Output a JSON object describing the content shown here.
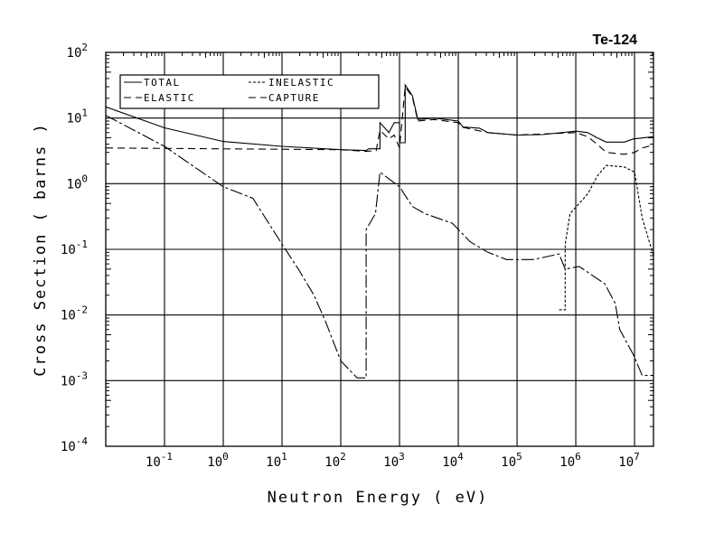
{
  "chart_data": {
    "type": "line",
    "title": "Te-124",
    "xlabel": "Neutron Energy (  eV)",
    "ylabel": "Cross Section ( barns )",
    "xscale": "log",
    "yscale": "log",
    "xlim": [
      0.01,
      21000000
    ],
    "ylim": [
      0.0001,
      100
    ],
    "grid": true,
    "legend_position": "top-left",
    "x_ticks": [
      {
        "base": "10",
        "exp": "-1"
      },
      {
        "base": "10",
        "exp": "0"
      },
      {
        "base": "10",
        "exp": "1"
      },
      {
        "base": "10",
        "exp": "2"
      },
      {
        "base": "10",
        "exp": "3"
      },
      {
        "base": "10",
        "exp": "4"
      },
      {
        "base": "10",
        "exp": "5"
      },
      {
        "base": "10",
        "exp": "6"
      },
      {
        "base": "10",
        "exp": "7"
      }
    ],
    "y_ticks": [
      {
        "base": "10",
        "exp": "2"
      },
      {
        "base": "10",
        "exp": "1"
      },
      {
        "base": "10",
        "exp": "0"
      },
      {
        "base": "10",
        "exp": "-1"
      },
      {
        "base": "10",
        "exp": "-2"
      },
      {
        "base": "10",
        "exp": "-3"
      },
      {
        "base": "10",
        "exp": "-4"
      }
    ],
    "series": [
      {
        "name": "TOTAL",
        "style": "solid",
        "points": [
          [
            0.01,
            14.8
          ],
          [
            0.1,
            7.1
          ],
          [
            1,
            4.4
          ],
          [
            10,
            3.7
          ],
          [
            100,
            3.3
          ],
          [
            270,
            3.2
          ],
          [
            300,
            3.4
          ],
          [
            465,
            3.4
          ],
          [
            465,
            8.5
          ],
          [
            660,
            6
          ],
          [
            810,
            8.5
          ],
          [
            1000,
            8.5
          ],
          [
            1000,
            4.2
          ],
          [
            1250,
            4.2
          ],
          [
            1250,
            32
          ],
          [
            1650,
            22
          ],
          [
            2050,
            9.5
          ],
          [
            3900,
            10
          ],
          [
            10000.0,
            9
          ],
          [
            12000.0,
            7.3
          ],
          [
            23000.0,
            7
          ],
          [
            32000.0,
            6
          ],
          [
            100000.0,
            5.5
          ],
          [
            270000.0,
            5.6
          ],
          [
            1000000.0,
            6.3
          ],
          [
            1600000.0,
            6
          ],
          [
            2300000.0,
            5
          ],
          [
            3300000.0,
            4.3
          ],
          [
            6700000.0,
            4.3
          ],
          [
            9500000.0,
            4.8
          ],
          [
            21000000.0,
            5.2
          ]
        ]
      },
      {
        "name": "ELASTIC",
        "style": "dashed",
        "points": [
          [
            0.01,
            3.5
          ],
          [
            100,
            3.3
          ],
          [
            270,
            3.1
          ],
          [
            400,
            3.2
          ],
          [
            465,
            6.5
          ],
          [
            660,
            4.8
          ],
          [
            810,
            5.5
          ],
          [
            1000,
            3.5
          ],
          [
            1250,
            30
          ],
          [
            1650,
            21
          ],
          [
            2050,
            9
          ],
          [
            3900,
            9.5
          ],
          [
            10000.0,
            8.5
          ],
          [
            12000.0,
            7.2
          ],
          [
            32000.0,
            6
          ],
          [
            100000.0,
            5.5
          ],
          [
            1000000.0,
            6
          ],
          [
            1600000.0,
            5.2
          ],
          [
            2300000.0,
            4
          ],
          [
            3300000.0,
            3
          ],
          [
            6700000.0,
            2.8
          ],
          [
            10000000.0,
            3
          ],
          [
            13500000.0,
            3.5
          ],
          [
            21000000.0,
            3.9
          ]
        ]
      },
      {
        "name": "INELASTIC",
        "style": "dotted",
        "points": [
          [
            520000.0,
            0.012
          ],
          [
            660000.0,
            0.012
          ],
          [
            660000.0,
            0.12
          ],
          [
            800000.0,
            0.35
          ],
          [
            1600000.0,
            0.7
          ],
          [
            2300000.0,
            1.3
          ],
          [
            3300000.0,
            1.9
          ],
          [
            6700000.0,
            1.8
          ],
          [
            10000000.0,
            1.5
          ],
          [
            13500000.0,
            0.3
          ],
          [
            21000000.0,
            0.08
          ]
        ]
      },
      {
        "name": "CAPTURE",
        "style": "dash-dot",
        "points": [
          [
            0.01,
            11
          ],
          [
            0.1,
            3.7
          ],
          [
            1,
            0.9
          ],
          [
            3.2,
            0.6
          ],
          [
            10,
            0.12
          ],
          [
            19,
            0.05
          ],
          [
            35,
            0.02
          ],
          [
            55,
            0.008
          ],
          [
            100,
            0.002
          ],
          [
            190,
            0.0011
          ],
          [
            270,
            0.0011
          ],
          [
            270,
            0.2
          ],
          [
            390,
            0.35
          ],
          [
            465,
            1.5
          ],
          [
            1000,
            0.9
          ],
          [
            1650,
            0.45
          ],
          [
            2700,
            0.35
          ],
          [
            7900,
            0.25
          ],
          [
            16000.0,
            0.13
          ],
          [
            32000.0,
            0.09
          ],
          [
            66000.0,
            0.07
          ],
          [
            190000.0,
            0.07
          ],
          [
            520000.0,
            0.085
          ],
          [
            660000.0,
            0.05
          ],
          [
            1140000.0,
            0.055
          ],
          [
            3100000.0,
            0.03
          ],
          [
            4700000.0,
            0.015
          ],
          [
            5600000.0,
            0.006
          ],
          [
            9500000.0,
            0.0025
          ],
          [
            13500000.0,
            0.0012
          ],
          [
            21000000.0,
            0.0012
          ]
        ]
      }
    ]
  }
}
